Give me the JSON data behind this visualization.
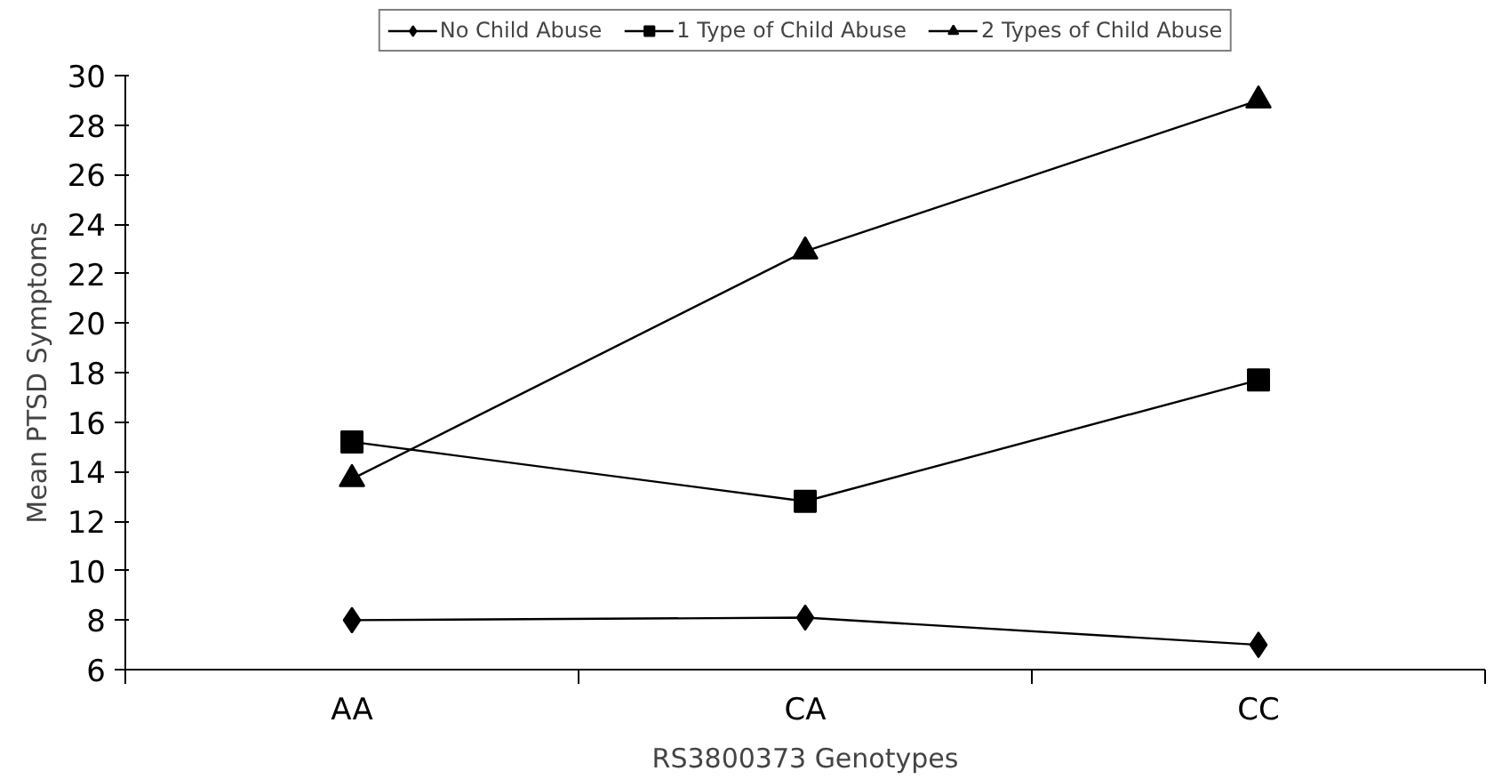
{
  "chart_data": {
    "type": "line",
    "xlabel": "RS3800373 Genotypes",
    "ylabel": "Mean PTSD Symptoms",
    "categories": [
      "AA",
      "CA",
      "CC"
    ],
    "series": [
      {
        "name": "No Child Abuse",
        "color": "#000000",
        "marker": "diamond",
        "values": [
          8.0,
          8.1,
          7.0
        ]
      },
      {
        "name": "1 Type of Child Abuse",
        "color": "#000000",
        "marker": "square",
        "values": [
          15.2,
          12.8,
          17.7
        ]
      },
      {
        "name": "2 Types of Child Abuse",
        "color": "#000000",
        "marker": "triangle",
        "values": [
          13.7,
          22.9,
          29.0
        ]
      }
    ],
    "ylim": [
      6,
      30
    ],
    "yticks": [
      6,
      8,
      10,
      12,
      14,
      16,
      18,
      20,
      22,
      24,
      26,
      28,
      30
    ],
    "grid": false,
    "legend": "top",
    "line_style": "solid"
  }
}
